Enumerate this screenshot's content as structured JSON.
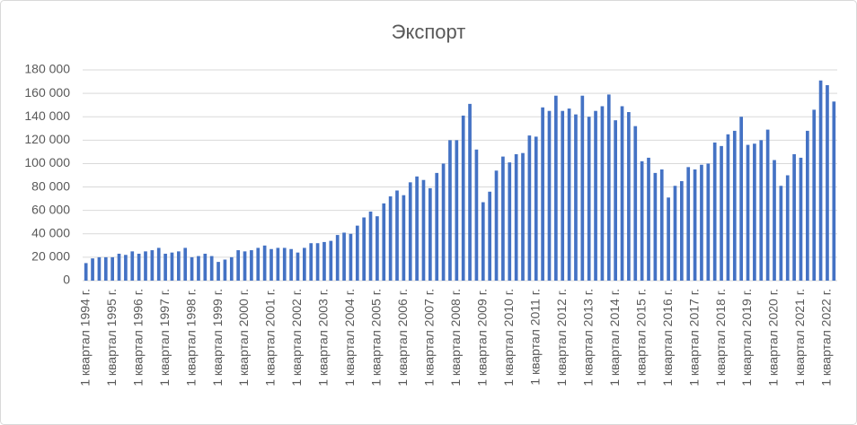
{
  "chart_data": {
    "type": "bar",
    "title": "Экспорт",
    "color": "#4472c4",
    "grid": true,
    "categories": [
      "1 квартал 1994 г.",
      null,
      null,
      null,
      "1 квартал 1995 г.",
      null,
      null,
      null,
      "1 квартал 1996 г.",
      null,
      null,
      null,
      "1 квартал 1997 г.",
      null,
      null,
      null,
      "1 квартал 1998 г.",
      null,
      null,
      null,
      "1 квартал 1999 г.",
      null,
      null,
      null,
      "1 квартал 2000 г.",
      null,
      null,
      null,
      "1 квартал 2001 г.",
      null,
      null,
      null,
      "1 квартал 2002 г.",
      null,
      null,
      null,
      "1 квартал 2003 г.",
      null,
      null,
      null,
      "1 квартал 2004 г.",
      null,
      null,
      null,
      "1 квартал 2005 г.",
      null,
      null,
      null,
      "1 квартал 2006 г.",
      null,
      null,
      null,
      "1 квартал 2007 г.",
      null,
      null,
      null,
      "1 квартал 2008 г.",
      null,
      null,
      null,
      "1 квартал 2009 г.",
      null,
      null,
      null,
      "1 квартал 2010 г.",
      null,
      null,
      null,
      "1 квартал 2011 г.",
      null,
      null,
      null,
      "1 квартал 2012 г.",
      null,
      null,
      null,
      "1 квартал 2013 г.",
      null,
      null,
      null,
      "1 квартал 2014 г.",
      null,
      null,
      null,
      "1 квартал 2015 г.",
      null,
      null,
      null,
      "1 квартал 2016 г.",
      null,
      null,
      null,
      "1 квартал 2017 г.",
      null,
      null,
      null,
      "1 квартал 2018 г.",
      null,
      null,
      null,
      "1 квартал 2019 г.",
      null,
      null,
      null,
      "1 квартал 2020 г.",
      null,
      null,
      null,
      "1 квартал 2021 г.",
      null,
      null,
      null,
      "1 квартал 2022 г.",
      null
    ],
    "values": [
      15000,
      19000,
      20000,
      20000,
      20000,
      23000,
      22000,
      25000,
      23000,
      25000,
      26000,
      28000,
      23000,
      24000,
      25000,
      28000,
      20000,
      21000,
      23000,
      21000,
      16000,
      18000,
      20000,
      26000,
      25000,
      26000,
      28000,
      30000,
      27000,
      28000,
      28000,
      27000,
      24000,
      28000,
      32000,
      32000,
      33000,
      34000,
      39000,
      41000,
      40000,
      47000,
      54000,
      59000,
      55000,
      66000,
      72000,
      77000,
      73000,
      84000,
      89000,
      86000,
      79000,
      92000,
      100000,
      120000,
      120000,
      141000,
      151000,
      112000,
      67000,
      76000,
      94000,
      106000,
      101000,
      108000,
      109000,
      124000,
      123000,
      148000,
      145000,
      158000,
      145000,
      147000,
      142000,
      158000,
      140000,
      145000,
      149000,
      159000,
      137000,
      149000,
      144000,
      132000,
      102000,
      105000,
      92000,
      95000,
      71000,
      81000,
      85000,
      97000,
      95000,
      99000,
      100000,
      118000,
      115000,
      125000,
      128000,
      140000,
      116000,
      117000,
      120000,
      129000,
      103000,
      81000,
      90000,
      108000,
      105000,
      128000,
      146000,
      171000,
      167000,
      153000
    ],
    "ylim": [
      0,
      180000
    ],
    "yticks": [
      0,
      {
        "value": 20000,
        "label": "20 000"
      },
      {
        "value": 40000,
        "label": "40 000"
      },
      {
        "value": 60000,
        "label": "60 000"
      },
      {
        "value": 80000,
        "label": "80 000"
      },
      {
        "value": 100000,
        "label": "100 000"
      },
      {
        "value": 120000,
        "label": "120 000"
      },
      {
        "value": 140000,
        "label": "140 000"
      },
      {
        "value": 160000,
        "label": "160 000"
      },
      {
        "value": 180000,
        "label": "180 000"
      }
    ]
  }
}
